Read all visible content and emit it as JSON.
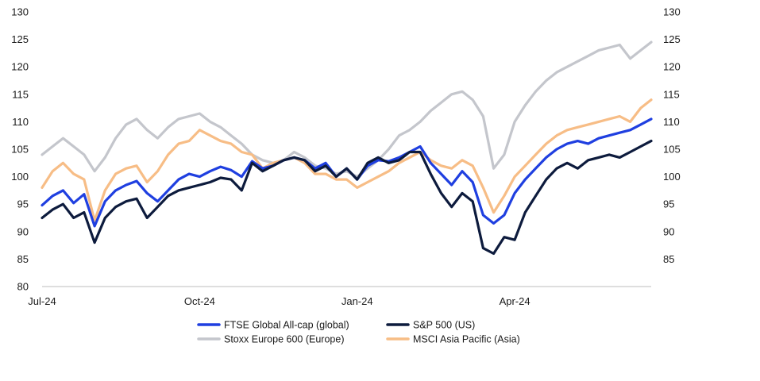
{
  "chart_data": {
    "type": "line",
    "title": "",
    "xlabel": "",
    "ylabel": "",
    "ylim": [
      80,
      130
    ],
    "y_ticks_left": [
      80,
      85,
      90,
      95,
      100,
      105,
      110,
      115,
      120,
      125,
      130
    ],
    "y_ticks_right": [
      85,
      90,
      95,
      100,
      105,
      110,
      115,
      120,
      125,
      130
    ],
    "x_tick_labels": [
      "Jul-24",
      "Oct-24",
      "Jan-24",
      "Apr-24"
    ],
    "x_tick_positions": [
      0,
      3,
      6,
      9
    ],
    "xlim": [
      0,
      11.6
    ],
    "grid": false,
    "legend_position": "bottom",
    "x_unit": "months since Jul-24",
    "series": [
      {
        "name": "FTSE Global All-cap (global)",
        "color": "#1f3fe0",
        "x": [
          0,
          0.2,
          0.4,
          0.6,
          0.8,
          1.0,
          1.2,
          1.4,
          1.6,
          1.8,
          2.0,
          2.2,
          2.4,
          2.6,
          2.8,
          3.0,
          3.2,
          3.4,
          3.6,
          3.8,
          4.0,
          4.2,
          4.4,
          4.6,
          4.8,
          5.0,
          5.2,
          5.4,
          5.6,
          5.8,
          6.0,
          6.2,
          6.4,
          6.6,
          6.8,
          7.0,
          7.2,
          7.4,
          7.6,
          7.8,
          8.0,
          8.2,
          8.4,
          8.6,
          8.8,
          9.0,
          9.2,
          9.4,
          9.6,
          9.8,
          10.0,
          10.2,
          10.4,
          10.6,
          10.8,
          11.0,
          11.2,
          11.4,
          11.6
        ],
        "values": [
          94.8,
          96.5,
          97.5,
          95.2,
          96.8,
          91.0,
          95.5,
          97.5,
          98.5,
          99.2,
          97.0,
          95.5,
          97.5,
          99.5,
          100.5,
          100.0,
          101.0,
          101.8,
          101.2,
          100.0,
          102.8,
          101.5,
          102.0,
          103.0,
          103.5,
          103.0,
          101.5,
          102.5,
          100.0,
          101.5,
          99.5,
          102.0,
          103.0,
          102.8,
          103.5,
          104.5,
          105.5,
          102.5,
          100.5,
          98.5,
          101.0,
          99.0,
          93.0,
          91.5,
          93.0,
          97.0,
          99.5,
          101.5,
          103.5,
          105.0,
          106.0,
          106.5,
          106.0,
          107.0,
          107.5,
          108.0,
          108.5,
          109.5,
          110.5
        ]
      },
      {
        "name": "S&P 500 (US)",
        "color": "#0d1b3d",
        "x": [
          0,
          0.2,
          0.4,
          0.6,
          0.8,
          1.0,
          1.2,
          1.4,
          1.6,
          1.8,
          2.0,
          2.2,
          2.4,
          2.6,
          2.8,
          3.0,
          3.2,
          3.4,
          3.6,
          3.8,
          4.0,
          4.2,
          4.4,
          4.6,
          4.8,
          5.0,
          5.2,
          5.4,
          5.6,
          5.8,
          6.0,
          6.2,
          6.4,
          6.6,
          6.8,
          7.0,
          7.2,
          7.4,
          7.6,
          7.8,
          8.0,
          8.2,
          8.4,
          8.6,
          8.8,
          9.0,
          9.2,
          9.4,
          9.6,
          9.8,
          10.0,
          10.2,
          10.4,
          10.6,
          10.8,
          11.0,
          11.2,
          11.4,
          11.6
        ],
        "values": [
          92.5,
          94.0,
          95.0,
          92.5,
          93.5,
          88.0,
          92.5,
          94.5,
          95.5,
          96.0,
          92.5,
          94.5,
          96.5,
          97.5,
          98.0,
          98.5,
          99.0,
          99.8,
          99.5,
          97.5,
          102.5,
          101.0,
          102.0,
          103.0,
          103.5,
          103.0,
          101.0,
          102.0,
          100.0,
          101.5,
          99.5,
          102.5,
          103.5,
          102.5,
          103.0,
          104.5,
          104.5,
          100.5,
          97.0,
          94.5,
          97.0,
          95.5,
          87.0,
          86.0,
          89.0,
          88.5,
          93.5,
          96.5,
          99.5,
          101.5,
          102.5,
          101.5,
          103.0,
          103.5,
          104.0,
          103.5,
          104.5,
          105.5,
          106.5
        ]
      },
      {
        "name": "Stoxx Europe 600 (Europe)",
        "color": "#c4c6cc",
        "x": [
          0,
          0.2,
          0.4,
          0.6,
          0.8,
          1.0,
          1.2,
          1.4,
          1.6,
          1.8,
          2.0,
          2.2,
          2.4,
          2.6,
          2.8,
          3.0,
          3.2,
          3.4,
          3.6,
          3.8,
          4.0,
          4.2,
          4.4,
          4.6,
          4.8,
          5.0,
          5.2,
          5.4,
          5.6,
          5.8,
          6.0,
          6.2,
          6.4,
          6.6,
          6.8,
          7.0,
          7.2,
          7.4,
          7.6,
          7.8,
          8.0,
          8.2,
          8.4,
          8.6,
          8.8,
          9.0,
          9.2,
          9.4,
          9.6,
          9.8,
          10.0,
          10.2,
          10.4,
          10.6,
          10.8,
          11.0,
          11.2,
          11.4,
          11.6
        ],
        "values": [
          104.0,
          105.5,
          107.0,
          105.5,
          104.0,
          101.0,
          103.5,
          107.0,
          109.5,
          110.5,
          108.5,
          107.0,
          109.0,
          110.5,
          111.0,
          111.5,
          110.0,
          109.0,
          107.5,
          106.0,
          104.0,
          103.0,
          102.5,
          103.0,
          104.5,
          103.5,
          102.0,
          101.5,
          100.5,
          101.0,
          100.0,
          101.5,
          103.0,
          105.0,
          107.5,
          108.5,
          110.0,
          112.0,
          113.5,
          115.0,
          115.5,
          114.0,
          111.0,
          101.5,
          104.0,
          110.0,
          113.0,
          115.5,
          117.5,
          119.0,
          120.0,
          121.0,
          122.0,
          123.0,
          123.5,
          124.0,
          121.5,
          123.0,
          124.5
        ]
      },
      {
        "name": "MSCI Asia Pacific (Asia)",
        "color": "#f7bd86",
        "x": [
          0,
          0.2,
          0.4,
          0.6,
          0.8,
          1.0,
          1.2,
          1.4,
          1.6,
          1.8,
          2.0,
          2.2,
          2.4,
          2.6,
          2.8,
          3.0,
          3.2,
          3.4,
          3.6,
          3.8,
          4.0,
          4.2,
          4.4,
          4.6,
          4.8,
          5.0,
          5.2,
          5.4,
          5.6,
          5.8,
          6.0,
          6.2,
          6.4,
          6.6,
          6.8,
          7.0,
          7.2,
          7.4,
          7.6,
          7.8,
          8.0,
          8.2,
          8.4,
          8.6,
          8.8,
          9.0,
          9.2,
          9.4,
          9.6,
          9.8,
          10.0,
          10.2,
          10.4,
          10.6,
          10.8,
          11.0,
          11.2,
          11.4,
          11.6
        ],
        "values": [
          98.0,
          101.0,
          102.5,
          100.5,
          99.5,
          92.0,
          97.5,
          100.5,
          101.5,
          102.0,
          99.0,
          101.0,
          104.0,
          106.0,
          106.5,
          108.5,
          107.5,
          106.5,
          106.0,
          104.5,
          104.0,
          101.5,
          102.5,
          103.0,
          103.5,
          102.5,
          100.5,
          100.5,
          99.5,
          99.5,
          98.0,
          99.0,
          100.0,
          101.0,
          102.5,
          103.5,
          104.5,
          103.0,
          102.0,
          101.5,
          103.0,
          102.0,
          98.0,
          93.5,
          96.5,
          100.0,
          102.0,
          104.0,
          106.0,
          107.5,
          108.5,
          109.0,
          109.5,
          110.0,
          110.5,
          111.0,
          110.0,
          112.5,
          114.0
        ]
      }
    ]
  }
}
